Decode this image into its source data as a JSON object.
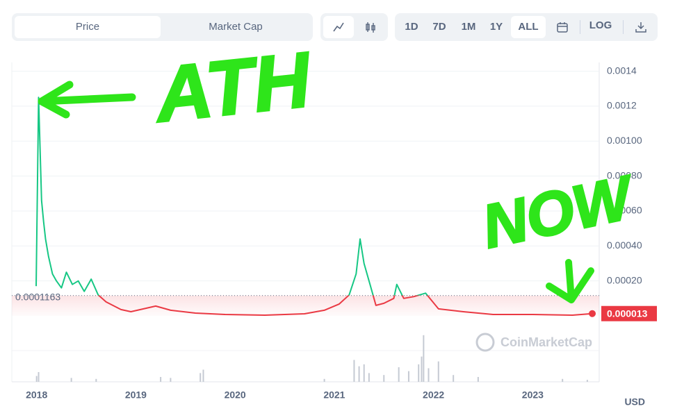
{
  "ui": {
    "tabs": [
      "Price",
      "Market Cap"
    ],
    "ranges": [
      "1D",
      "7D",
      "1M",
      "1Y",
      "ALL"
    ],
    "log": "LOG",
    "currency": "USD",
    "watermark": "CoinMarketCap"
  },
  "chart_data": {
    "type": "line",
    "annotations": [
      "ATH",
      "NOW"
    ],
    "xlim": [
      2017.75,
      2023.67
    ],
    "xticks": [
      2018,
      2019,
      2020,
      2021,
      2022,
      2023
    ],
    "ylim": [
      0,
      0.00145
    ],
    "yticks": [
      {
        "value": 0.0002,
        "label": "0.00020"
      },
      {
        "value": 0.0004,
        "label": "0.00040"
      },
      {
        "value": 0.0006,
        "label": "0.00060"
      },
      {
        "value": 0.0008,
        "label": "0.00080"
      },
      {
        "value": 0.001,
        "label": "0.00100"
      },
      0.0012,
      0.0014
    ],
    "grid": true,
    "baseline": 0.0001163,
    "current_price": 1.3e-05,
    "below_color": "#ea3943",
    "series": [
      {
        "color": "#16c784",
        "x": [
          2017.995,
          2018.02,
          2018.05,
          2018.07,
          2018.09,
          2018.12,
          2018.16,
          2018.2,
          2018.25,
          2018.3,
          2018.36,
          2018.42,
          2018.48,
          2018.55,
          2018.62,
          2018.7,
          2018.85,
          2018.95,
          2019.2,
          2019.35,
          2019.6,
          2019.9,
          2020.3,
          2020.7,
          2020.9,
          2021.05,
          2021.15,
          2021.22,
          2021.26,
          2021.3,
          2021.36,
          2021.42,
          2021.5,
          2021.6,
          2021.63,
          2021.7,
          2021.8,
          2021.92,
          2022.05,
          2022.3,
          2022.6,
          2023.0,
          2023.4,
          2023.6
        ],
        "values": [
          0.00017,
          0.00125,
          0.00066,
          0.00054,
          0.00044,
          0.00034,
          0.00024,
          0.0002,
          0.00016,
          0.00025,
          0.00018,
          0.0002,
          0.00014,
          0.00021,
          0.00012,
          8e-05,
          3.6e-05,
          2.4e-05,
          5.6e-05,
          3.2e-05,
          1.6e-05,
          8e-06,
          4e-06,
          1.2e-05,
          3.2e-05,
          6.8e-05,
          0.00012,
          0.00024,
          0.00044,
          0.0003,
          0.00018,
          6e-05,
          7.2e-05,
          0.0001,
          0.00018,
          0.0001,
          0.00011,
          0.00013,
          4e-05,
          2.4e-05,
          8e-06,
          8e-06,
          4e-06,
          1.3e-05
        ]
      }
    ],
    "volume": {
      "color": "#c5cad3",
      "ylim": [
        0,
        100
      ],
      "x": [
        2018.0,
        2018.02,
        2018.35,
        2018.6,
        2019.25,
        2019.35,
        2019.65,
        2019.68,
        2020.9,
        2021.2,
        2021.25,
        2021.3,
        2021.35,
        2021.5,
        2021.65,
        2021.75,
        2021.85,
        2021.88,
        2021.9,
        2021.95,
        2022.05,
        2022.2,
        2022.45,
        2023.3,
        2023.55
      ],
      "values": [
        12,
        20,
        8,
        6,
        10,
        8,
        18,
        25,
        6,
        45,
        32,
        36,
        18,
        14,
        30,
        22,
        36,
        52,
        96,
        28,
        42,
        14,
        10,
        6,
        4
      ]
    }
  }
}
